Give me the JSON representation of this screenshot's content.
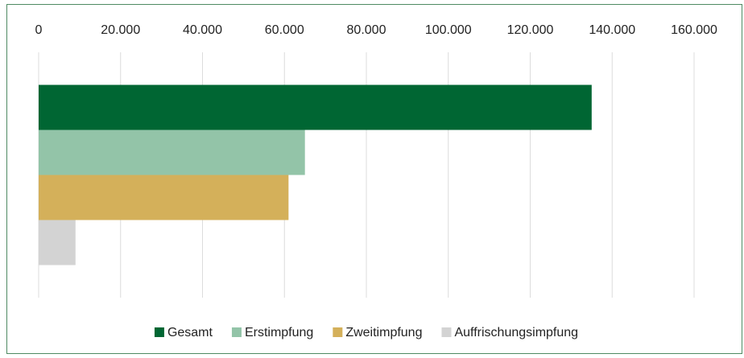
{
  "chart_data": {
    "type": "hbar",
    "categories": [
      null
    ],
    "series": [
      {
        "name": "Gesamt",
        "color": "#006633",
        "values": [
          135000
        ]
      },
      {
        "name": "Erstimpfung",
        "color": "#93c4a8",
        "values": [
          65000
        ]
      },
      {
        "name": "Zweitimpfung",
        "color": "#d4b05a",
        "values": [
          61000
        ]
      },
      {
        "name": "Auffrischungsimpfung",
        "color": "#d3d3d3",
        "values": [
          9000
        ]
      }
    ],
    "xlim": [
      0,
      160000
    ],
    "xticks": [
      0,
      {
        "value": 20000,
        "label": "20.000"
      },
      {
        "value": 40000,
        "label": "40.000"
      },
      {
        "value": 60000,
        "label": "60.000"
      },
      {
        "value": 80000,
        "label": "80.000"
      },
      {
        "value": 100000,
        "label": "100.000"
      },
      {
        "value": 120000,
        "label": "120.000"
      },
      {
        "value": 140000,
        "label": "140.000"
      },
      {
        "value": 160000,
        "label": "160.000"
      }
    ],
    "grid": true,
    "legend": "bottom"
  }
}
